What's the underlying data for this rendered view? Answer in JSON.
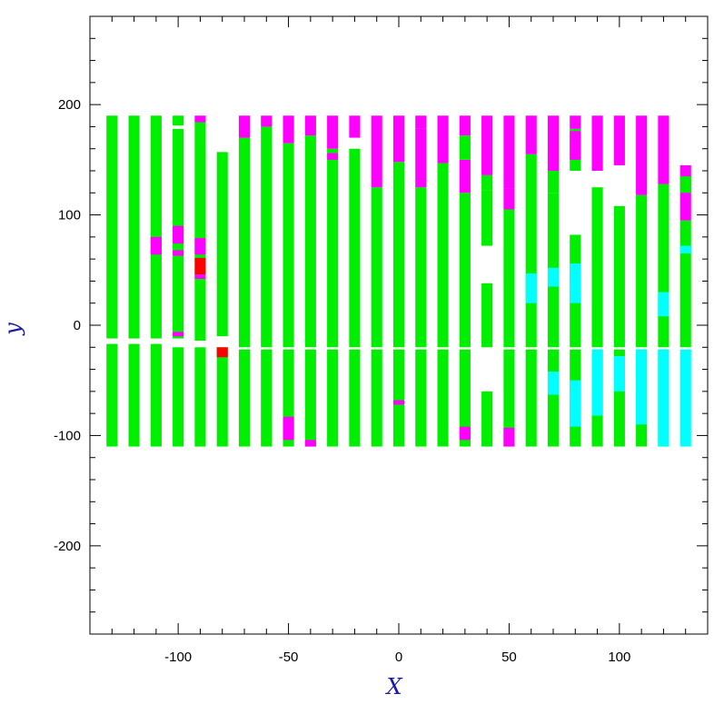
{
  "colors": {
    "green": "#00ee00",
    "magenta": "#ff00ff",
    "cyan": "#00ffff",
    "red": "#ff0000",
    "frame": "#000000",
    "axis_title": "#1a1aa6",
    "background": "#ffffff"
  },
  "chart_data": {
    "type": "heatmap",
    "title": "",
    "xlabel": "X",
    "ylabel": "y",
    "xlim": [
      -140,
      140
    ],
    "ylim": [
      -280,
      280
    ],
    "grid": false,
    "legend": "none",
    "x_ticks": [
      -100,
      -50,
      0,
      50,
      100
    ],
    "y_ticks": [
      -200,
      -100,
      0,
      100,
      200
    ],
    "strip_width": 5,
    "columns": [
      {
        "x": -130,
        "segments": [
          {
            "y0": -12,
            "y1": 190,
            "color": "green"
          },
          {
            "y0": -110,
            "y1": -17,
            "color": "green"
          }
        ]
      },
      {
        "x": -120,
        "segments": [
          {
            "y0": -12,
            "y1": 190,
            "color": "green"
          },
          {
            "y0": -110,
            "y1": -17,
            "color": "green"
          }
        ]
      },
      {
        "x": -110,
        "segments": [
          {
            "y0": -12,
            "y1": 190,
            "color": "green"
          },
          {
            "y0": 64,
            "y1": 80,
            "color": "magenta"
          },
          {
            "y0": -110,
            "y1": -17,
            "color": "green"
          }
        ]
      },
      {
        "x": -100,
        "segments": [
          {
            "y0": -12,
            "y1": 178,
            "color": "green"
          },
          {
            "y0": 181,
            "y1": 190,
            "color": "green"
          },
          {
            "y0": 74,
            "y1": 90,
            "color": "magenta"
          },
          {
            "y0": 63,
            "y1": 68,
            "color": "magenta"
          },
          {
            "y0": -10,
            "y1": -6,
            "color": "magenta"
          },
          {
            "y0": -110,
            "y1": -20,
            "color": "green"
          }
        ]
      },
      {
        "x": -90,
        "segments": [
          {
            "y0": -14,
            "y1": 186,
            "color": "green"
          },
          {
            "y0": 184,
            "y1": 190,
            "color": "magenta"
          },
          {
            "y0": 64,
            "y1": 79,
            "color": "magenta"
          },
          {
            "y0": 46,
            "y1": 61,
            "color": "red"
          },
          {
            "y0": 42,
            "y1": 46,
            "color": "magenta"
          },
          {
            "y0": -110,
            "y1": -20,
            "color": "green"
          }
        ]
      },
      {
        "x": -80,
        "segments": [
          {
            "y0": -10,
            "y1": 157,
            "color": "green"
          },
          {
            "y0": -110,
            "y1": -20,
            "color": "green"
          },
          {
            "y0": -29,
            "y1": -20,
            "color": "red"
          }
        ]
      },
      {
        "x": -70,
        "segments": [
          {
            "y0": -20,
            "y1": 170,
            "color": "green"
          },
          {
            "y0": 170,
            "y1": 190,
            "color": "magenta"
          },
          {
            "y0": -110,
            "y1": -22,
            "color": "green"
          }
        ]
      },
      {
        "x": -60,
        "segments": [
          {
            "y0": -20,
            "y1": 180,
            "color": "green"
          },
          {
            "y0": 180,
            "y1": 190,
            "color": "magenta"
          },
          {
            "y0": -110,
            "y1": -22,
            "color": "green"
          }
        ]
      },
      {
        "x": -50,
        "segments": [
          {
            "y0": -20,
            "y1": 165,
            "color": "green"
          },
          {
            "y0": 165,
            "y1": 190,
            "color": "magenta"
          },
          {
            "y0": -110,
            "y1": -22,
            "color": "green"
          },
          {
            "y0": -104,
            "y1": -83,
            "color": "magenta"
          }
        ]
      },
      {
        "x": -40,
        "segments": [
          {
            "y0": -20,
            "y1": 172,
            "color": "green"
          },
          {
            "y0": 172,
            "y1": 190,
            "color": "magenta"
          },
          {
            "y0": -110,
            "y1": -22,
            "color": "green"
          },
          {
            "y0": -110,
            "y1": -104,
            "color": "magenta"
          }
        ]
      },
      {
        "x": -30,
        "segments": [
          {
            "y0": -20,
            "y1": 160,
            "color": "green"
          },
          {
            "y0": 160,
            "y1": 190,
            "color": "magenta"
          },
          {
            "y0": 150,
            "y1": 156,
            "color": "magenta"
          },
          {
            "y0": -110,
            "y1": -22,
            "color": "green"
          }
        ]
      },
      {
        "x": -20,
        "segments": [
          {
            "y0": -20,
            "y1": 160,
            "color": "green"
          },
          {
            "y0": 170,
            "y1": 190,
            "color": "magenta"
          },
          {
            "y0": -110,
            "y1": -22,
            "color": "green"
          }
        ]
      },
      {
        "x": -10,
        "segments": [
          {
            "y0": -20,
            "y1": 125,
            "color": "green"
          },
          {
            "y0": 125,
            "y1": 190,
            "color": "magenta"
          },
          {
            "y0": -110,
            "y1": -22,
            "color": "green"
          }
        ]
      },
      {
        "x": 0,
        "segments": [
          {
            "y0": -20,
            "y1": 148,
            "color": "green"
          },
          {
            "y0": 148,
            "y1": 190,
            "color": "magenta"
          },
          {
            "y0": -110,
            "y1": -22,
            "color": "green"
          },
          {
            "y0": -72,
            "y1": -68,
            "color": "magenta"
          }
        ]
      },
      {
        "x": 10,
        "segments": [
          {
            "y0": -20,
            "y1": 125,
            "color": "green"
          },
          {
            "y0": 125,
            "y1": 178,
            "color": "magenta"
          },
          {
            "y0": 178,
            "y1": 190,
            "color": "magenta"
          },
          {
            "y0": -110,
            "y1": -22,
            "color": "green"
          }
        ]
      },
      {
        "x": 20,
        "segments": [
          {
            "y0": -20,
            "y1": 147,
            "color": "green"
          },
          {
            "y0": 147,
            "y1": 190,
            "color": "magenta"
          },
          {
            "y0": -110,
            "y1": -22,
            "color": "green"
          }
        ]
      },
      {
        "x": 30,
        "segments": [
          {
            "y0": -20,
            "y1": 120,
            "color": "green"
          },
          {
            "y0": 120,
            "y1": 150,
            "color": "magenta"
          },
          {
            "y0": 150,
            "y1": 172,
            "color": "green"
          },
          {
            "y0": 172,
            "y1": 190,
            "color": "magenta"
          },
          {
            "y0": -110,
            "y1": -22,
            "color": "green"
          },
          {
            "y0": -104,
            "y1": -92,
            "color": "magenta"
          }
        ]
      },
      {
        "x": 40,
        "segments": [
          {
            "y0": -20,
            "y1": 38,
            "color": "green"
          },
          {
            "y0": 72,
            "y1": 122,
            "color": "green"
          },
          {
            "y0": 122,
            "y1": 136,
            "color": "green"
          },
          {
            "y0": 136,
            "y1": 190,
            "color": "magenta"
          },
          {
            "y0": -110,
            "y1": -60,
            "color": "green"
          }
        ]
      },
      {
        "x": 50,
        "segments": [
          {
            "y0": -20,
            "y1": 105,
            "color": "green"
          },
          {
            "y0": 105,
            "y1": 124,
            "color": "magenta"
          },
          {
            "y0": 124,
            "y1": 190,
            "color": "magenta"
          },
          {
            "y0": -110,
            "y1": -22,
            "color": "green"
          },
          {
            "y0": -110,
            "y1": -93,
            "color": "magenta"
          }
        ]
      },
      {
        "x": 60,
        "segments": [
          {
            "y0": -20,
            "y1": 155,
            "color": "green"
          },
          {
            "y0": 155,
            "y1": 190,
            "color": "magenta"
          },
          {
            "y0": 20,
            "y1": 47,
            "color": "cyan"
          },
          {
            "y0": -110,
            "y1": -22,
            "color": "green"
          }
        ]
      },
      {
        "x": 70,
        "segments": [
          {
            "y0": -20,
            "y1": 120,
            "color": "green"
          },
          {
            "y0": 120,
            "y1": 140,
            "color": "green"
          },
          {
            "y0": 140,
            "y1": 190,
            "color": "magenta"
          },
          {
            "y0": 35,
            "y1": 52,
            "color": "cyan"
          },
          {
            "y0": -110,
            "y1": -22,
            "color": "green"
          },
          {
            "y0": -63,
            "y1": -42,
            "color": "cyan"
          }
        ]
      },
      {
        "x": 80,
        "segments": [
          {
            "y0": -20,
            "y1": 82,
            "color": "green"
          },
          {
            "y0": 140,
            "y1": 178,
            "color": "green"
          },
          {
            "y0": 178,
            "y1": 190,
            "color": "magenta"
          },
          {
            "y0": 150,
            "y1": 176,
            "color": "magenta"
          },
          {
            "y0": 20,
            "y1": 56,
            "color": "cyan"
          },
          {
            "y0": -110,
            "y1": -22,
            "color": "green"
          },
          {
            "y0": -92,
            "y1": -50,
            "color": "cyan"
          }
        ]
      },
      {
        "x": 90,
        "segments": [
          {
            "y0": -20,
            "y1": 125,
            "color": "green"
          },
          {
            "y0": 140,
            "y1": 190,
            "color": "magenta"
          },
          {
            "y0": -110,
            "y1": -22,
            "color": "green"
          },
          {
            "y0": -82,
            "y1": -22,
            "color": "cyan"
          }
        ]
      },
      {
        "x": 100,
        "segments": [
          {
            "y0": -20,
            "y1": 108,
            "color": "green"
          },
          {
            "y0": 145,
            "y1": 190,
            "color": "magenta"
          },
          {
            "y0": -110,
            "y1": -22,
            "color": "green"
          },
          {
            "y0": -60,
            "y1": -28,
            "color": "cyan"
          }
        ]
      },
      {
        "x": 110,
        "segments": [
          {
            "y0": -20,
            "y1": 118,
            "color": "green"
          },
          {
            "y0": 118,
            "y1": 190,
            "color": "magenta"
          },
          {
            "y0": -110,
            "y1": -22,
            "color": "green"
          },
          {
            "y0": -90,
            "y1": -22,
            "color": "cyan"
          }
        ]
      },
      {
        "x": 120,
        "segments": [
          {
            "y0": -20,
            "y1": 128,
            "color": "green"
          },
          {
            "y0": 128,
            "y1": 190,
            "color": "magenta"
          },
          {
            "y0": 8,
            "y1": 30,
            "color": "cyan"
          },
          {
            "y0": -110,
            "y1": -22,
            "color": "green"
          },
          {
            "y0": -110,
            "y1": -22,
            "color": "cyan"
          }
        ]
      },
      {
        "x": 130,
        "segments": [
          {
            "y0": -20,
            "y1": 95,
            "color": "green"
          },
          {
            "y0": 95,
            "y1": 145,
            "color": "magenta"
          },
          {
            "y0": 120,
            "y1": 135,
            "color": "green"
          },
          {
            "y0": 65,
            "y1": 72,
            "color": "cyan"
          },
          {
            "y0": -110,
            "y1": -22,
            "color": "cyan"
          }
        ]
      }
    ]
  }
}
